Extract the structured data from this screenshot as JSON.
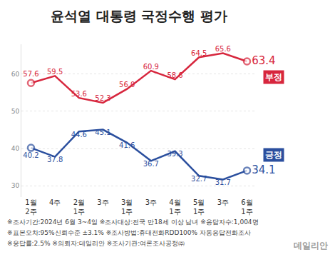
{
  "chart_data": {
    "type": "line",
    "title": "윤석열 대통령 국정수행 평가",
    "categories": [
      "1월\n2주",
      "4주",
      "2월\n1주",
      "3주",
      "3월\n1주",
      "3주",
      "4월\n1주",
      "5월\n1주",
      "3주",
      "6월\n1주"
    ],
    "series": [
      {
        "name": "부정",
        "color": "#d7263d",
        "values": [
          57.6,
          59.5,
          53.6,
          52.3,
          56.0,
          60.9,
          58.6,
          64.5,
          65.6,
          63.4
        ],
        "value_labels": [
          "57.6",
          "59.5",
          "53.6",
          "52.3",
          "56.0",
          "60.9",
          "58.6",
          "64.5",
          "65.6",
          "63.4"
        ]
      },
      {
        "name": "긍정",
        "color": "#2b4f9e",
        "values": [
          40.2,
          37.8,
          44.6,
          45.1,
          41.6,
          36.7,
          39.3,
          32.7,
          31.7,
          34.1
        ]
      }
    ],
    "ylim": [
      27,
      68
    ],
    "yticks": [
      30,
      40,
      50,
      60
    ],
    "grid": true,
    "data_labels": true,
    "marker": "circle",
    "annotations": [
      "※조사기간:2024년 6월 3~4일 ※조사대상:전국 만18세 이상 남녀 ※응답자수:1,004명",
      "※표본오차:95%신뢰수준 ±3.1% ※조사방법:휴대전화RDD100% 자동응답전화조사",
      "※응답률:2.5% ※의뢰자:데일리안 ※조사기관:여론조사공정㈜",
      "데일리안"
    ]
  }
}
